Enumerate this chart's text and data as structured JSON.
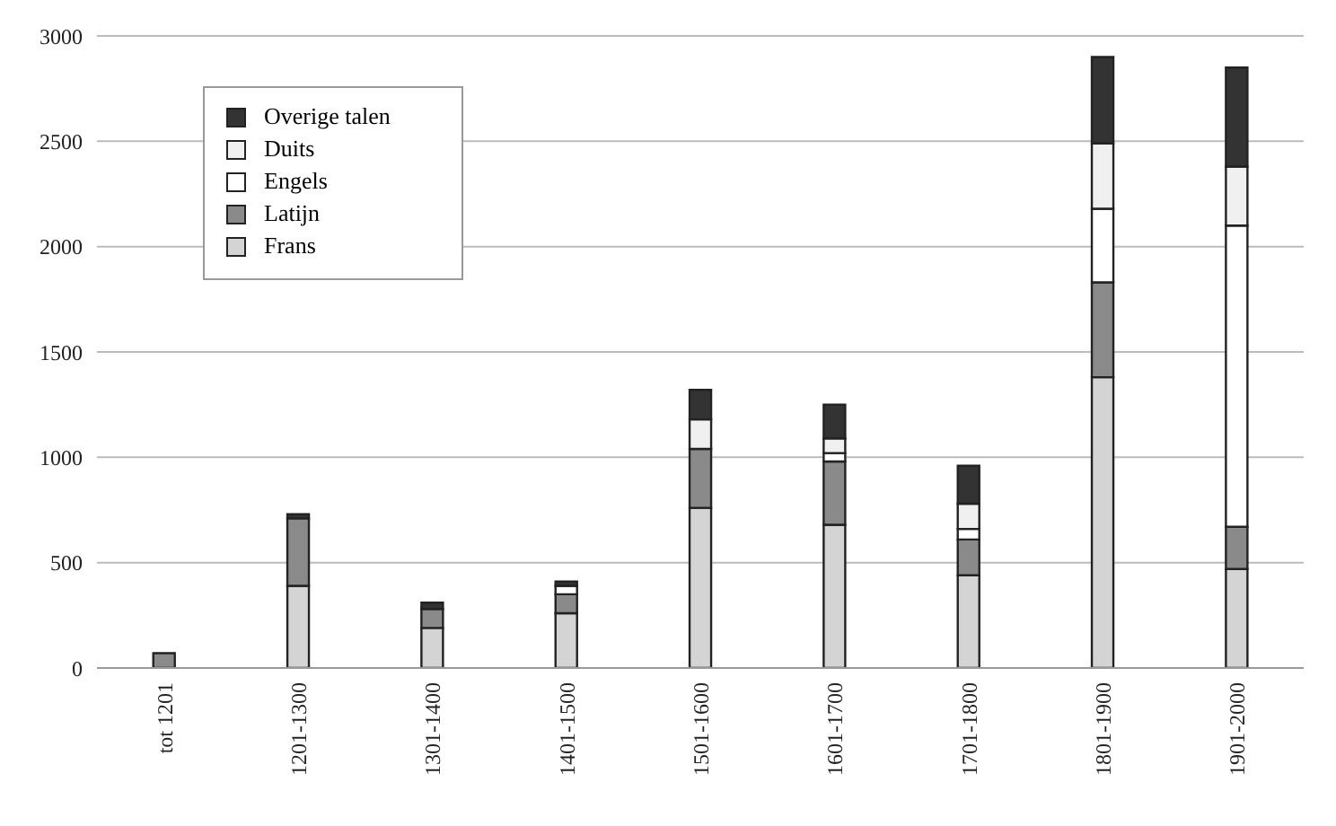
{
  "chart_data": {
    "type": "bar",
    "stacked": true,
    "categories": [
      "tot 1201",
      "1201-1300",
      "1301-1400",
      "1401-1500",
      "1501-1600",
      "1601-1700",
      "1701-1800",
      "1801-1900",
      "1901-2000"
    ],
    "series": [
      {
        "name": "Frans",
        "color": "#d4d4d4",
        "values": [
          0,
          390,
          190,
          260,
          760,
          680,
          440,
          1380,
          470
        ]
      },
      {
        "name": "Latijn",
        "color": "#8a8a8a",
        "values": [
          70,
          320,
          90,
          90,
          280,
          300,
          170,
          450,
          200
        ]
      },
      {
        "name": "Engels",
        "color": "#ffffff",
        "values": [
          0,
          0,
          0,
          40,
          0,
          40,
          50,
          350,
          1430
        ]
      },
      {
        "name": "Duits",
        "color": "#f0f0f0",
        "values": [
          0,
          0,
          0,
          0,
          140,
          70,
          120,
          310,
          280
        ]
      },
      {
        "name": "Overige talen",
        "color": "#333333",
        "values": [
          0,
          20,
          30,
          20,
          140,
          160,
          180,
          410,
          470
        ]
      }
    ],
    "ylim": [
      0,
      3000
    ],
    "yticks": [
      0,
      500,
      1000,
      1500,
      2000,
      2500,
      3000
    ],
    "grid": "y",
    "legend": "top left"
  }
}
